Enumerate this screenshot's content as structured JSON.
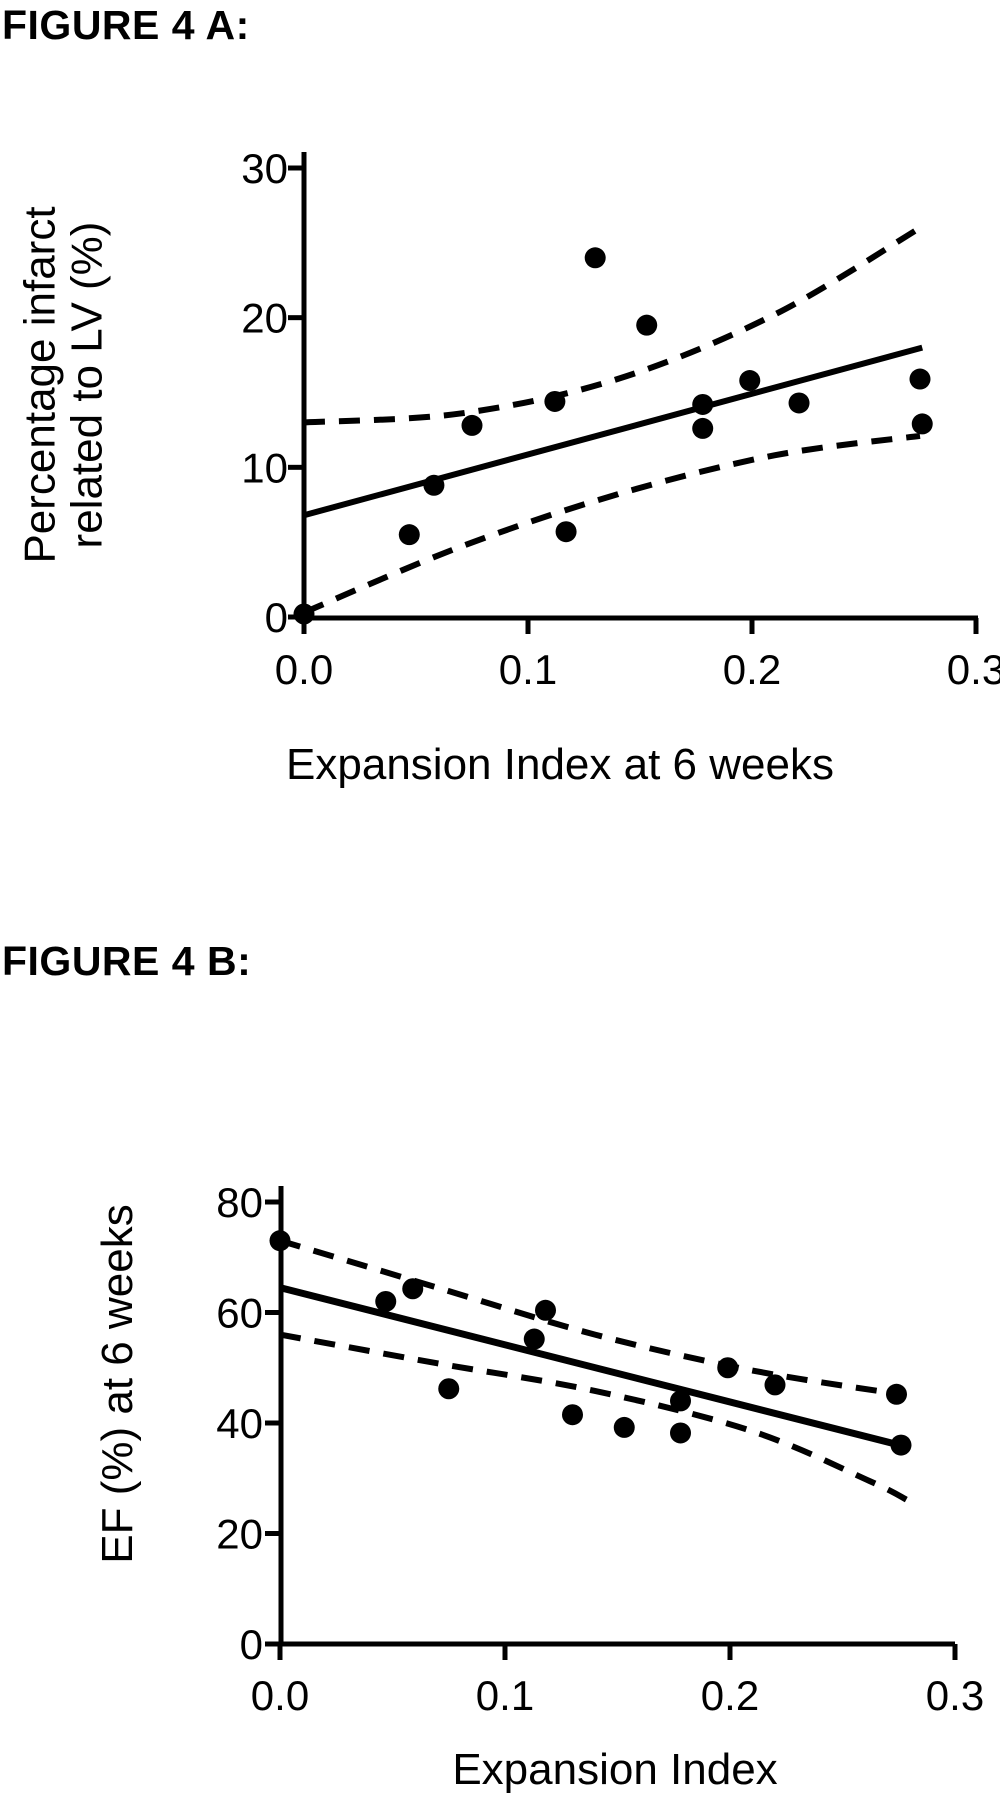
{
  "figure_a": {
    "title": "FIGURE 4 A:"
  },
  "figure_b": {
    "title": "FIGURE 4 B:"
  },
  "colors": {
    "ink": "#000000",
    "background": "#ffffff"
  },
  "chart_data": [
    {
      "id": "A",
      "type": "scatter",
      "title": "",
      "xlabel": "Expansion Index at 6 weeks",
      "ylabel": "Percentage infarct related to LV (%)",
      "ylabel_lines": [
        "Percentage infarct",
        "related to LV (%)"
      ],
      "xlim": [
        0.0,
        0.3
      ],
      "ylim": [
        0,
        30
      ],
      "x_tick_labels": [
        "0.0",
        "0.1",
        "0.2",
        "0.3"
      ],
      "x_tick_values": [
        0.0,
        0.1,
        0.2,
        0.3
      ],
      "y_tick_labels": [
        "0",
        "10",
        "20",
        "30"
      ],
      "y_tick_values": [
        0,
        10,
        20,
        30
      ],
      "grid": false,
      "legend": null,
      "marker": "filled-circle",
      "points": [
        [
          0.0,
          0.2
        ],
        [
          0.047,
          5.5
        ],
        [
          0.058,
          8.8
        ],
        [
          0.075,
          12.8
        ],
        [
          0.112,
          14.4
        ],
        [
          0.117,
          5.7
        ],
        [
          0.13,
          24.0
        ],
        [
          0.153,
          19.5
        ],
        [
          0.178,
          14.2
        ],
        [
          0.178,
          12.6
        ],
        [
          0.199,
          15.8
        ],
        [
          0.221,
          14.3
        ],
        [
          0.275,
          15.9
        ],
        [
          0.276,
          12.9
        ]
      ],
      "regression_line": [
        [
          0.0,
          6.8
        ],
        [
          0.276,
          18.0
        ]
      ],
      "ci_upper": [
        [
          0.0,
          13.0
        ],
        [
          0.07,
          13.6
        ],
        [
          0.14,
          15.9
        ],
        [
          0.21,
          20.2
        ],
        [
          0.275,
          26.0
        ]
      ],
      "ci_lower": [
        [
          0.0,
          0.3
        ],
        [
          0.07,
          4.7
        ],
        [
          0.14,
          8.2
        ],
        [
          0.21,
          10.8
        ],
        [
          0.275,
          12.1
        ]
      ]
    },
    {
      "id": "B",
      "type": "scatter",
      "title": "",
      "xlabel": "Expansion Index",
      "ylabel": "EF (%) at 6 weeks",
      "ylabel_lines": [
        "EF (%) at 6 weeks"
      ],
      "xlim": [
        0.0,
        0.3
      ],
      "ylim": [
        0,
        80
      ],
      "x_tick_labels": [
        "0.0",
        "0.1",
        "0.2",
        "0.3"
      ],
      "x_tick_values": [
        0.0,
        0.1,
        0.2,
        0.3
      ],
      "y_tick_labels": [
        "0",
        "20",
        "40",
        "60",
        "80"
      ],
      "y_tick_values": [
        0,
        20,
        40,
        60,
        80
      ],
      "grid": false,
      "legend": null,
      "marker": "filled-circle",
      "points": [
        [
          0.0,
          73.0
        ],
        [
          0.047,
          62.0
        ],
        [
          0.059,
          64.3
        ],
        [
          0.075,
          46.2
        ],
        [
          0.113,
          55.2
        ],
        [
          0.118,
          60.4
        ],
        [
          0.13,
          41.5
        ],
        [
          0.153,
          39.2
        ],
        [
          0.178,
          44.0
        ],
        [
          0.178,
          38.2
        ],
        [
          0.199,
          50.0
        ],
        [
          0.22,
          46.9
        ],
        [
          0.274,
          45.2
        ],
        [
          0.276,
          36.0
        ]
      ],
      "regression_line": [
        [
          0.0,
          64.5
        ],
        [
          0.2755,
          36.0
        ]
      ],
      "ci_upper": [
        [
          0.0,
          73.0
        ],
        [
          0.07,
          64.5
        ],
        [
          0.14,
          56.0
        ],
        [
          0.21,
          49.5
        ],
        [
          0.274,
          45.3
        ]
      ],
      "ci_lower": [
        [
          0.0,
          56.0
        ],
        [
          0.07,
          50.8
        ],
        [
          0.14,
          45.8
        ],
        [
          0.21,
          38.5
        ],
        [
          0.262,
          29.5
        ],
        [
          0.279,
          26.0
        ]
      ]
    }
  ]
}
